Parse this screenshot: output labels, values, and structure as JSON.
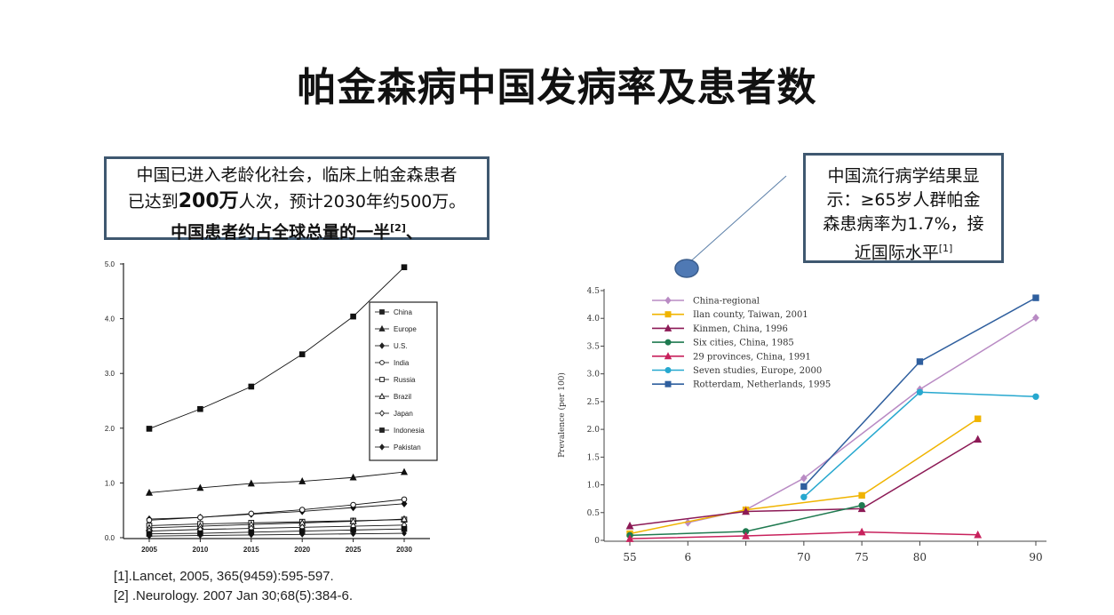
{
  "title": "帕金森病中国发病率及患者数",
  "callout_left": {
    "line1": "中国已进入老龄化社会，临床上帕金森患者",
    "line2_a": "已达到",
    "line2_b": "200万",
    "line2_c": "人次，预计2030年约500万。",
    "line3": "中国患者约占全球总量的一半",
    "line3_sup": "[2]",
    "line3_tail": "、"
  },
  "callout_right": {
    "line1": "中国流行病学结果显",
    "line2": "示：≥65岁人群帕金",
    "line3": "森患病率为1.7%，接",
    "line4": "近国际水平",
    "line4_sup": "[1]"
  },
  "references": [
    "[1].Lancet, 2005, 365(9459):595-597.",
    "[2] .Neurology. 2007 Jan 30;68(5):384-6."
  ],
  "chart_data": [
    {
      "type": "line",
      "x": [
        2005,
        2010,
        2015,
        2020,
        2025,
        2030
      ],
      "xlim": [
        2005,
        2030
      ],
      "ylim": [
        0,
        5.0
      ],
      "yticks": [
        "0.0",
        "1.0",
        "2.0",
        "3.0",
        "4.0",
        "5.0"
      ],
      "xticks": [
        "2005",
        "2010",
        "2015",
        "2020",
        "2025",
        "2030"
      ],
      "legend_position": "top-right",
      "color": "#111111",
      "series": [
        {
          "name": "China",
          "marker": "filled-square",
          "values": [
            1.99,
            2.35,
            2.76,
            3.35,
            4.04,
            4.94
          ]
        },
        {
          "name": "Europe",
          "marker": "filled-triangle",
          "values": [
            0.82,
            0.91,
            0.99,
            1.03,
            1.1,
            1.2
          ]
        },
        {
          "name": "U.S.",
          "marker": "filled-diamond",
          "values": [
            0.34,
            0.37,
            0.43,
            0.48,
            0.55,
            0.62
          ]
        },
        {
          "name": "India",
          "marker": "open-circle",
          "values": [
            0.32,
            0.37,
            0.44,
            0.51,
            0.6,
            0.7
          ]
        },
        {
          "name": "Russia",
          "marker": "open-square",
          "values": [
            0.22,
            0.25,
            0.27,
            0.29,
            0.31,
            0.33
          ]
        },
        {
          "name": "Brazil",
          "marker": "open-triangle",
          "values": [
            0.18,
            0.21,
            0.24,
            0.27,
            0.3,
            0.34
          ]
        },
        {
          "name": "Japan",
          "marker": "open-diamond",
          "values": [
            0.12,
            0.15,
            0.17,
            0.19,
            0.21,
            0.23
          ]
        },
        {
          "name": "Indonesia",
          "marker": "filled-square",
          "values": [
            0.07,
            0.08,
            0.1,
            0.12,
            0.14,
            0.16
          ]
        },
        {
          "name": "Pakistan",
          "marker": "small-diamond",
          "values": [
            0.03,
            0.04,
            0.05,
            0.06,
            0.07,
            0.08
          ]
        }
      ]
    },
    {
      "type": "line",
      "ylabel": "Prevalence (per 100)",
      "x_ticks": [
        "55",
        "6",
        "",
        "70",
        "75",
        "80",
        "",
        "90"
      ],
      "x_tick_values": [
        55,
        60,
        65,
        70,
        75,
        80,
        85,
        90
      ],
      "xlim": [
        55,
        90
      ],
      "ylim": [
        0,
        4.5
      ],
      "yticks": [
        "0",
        "0.5",
        "1.0",
        "1.5",
        "2.0",
        "2.5",
        "3.0",
        "3.5",
        "4.0",
        "4.5"
      ],
      "legend_position": "top-left",
      "series": [
        {
          "name": "China-regional",
          "color": "#b98bc4",
          "marker": "diamond",
          "x": [
            60,
            65,
            70,
            80,
            90
          ],
          "values": [
            0.32,
            0.55,
            1.12,
            2.72,
            4.01
          ]
        },
        {
          "name": "Ilan county, Taiwan, 2001",
          "color": "#f0b400",
          "marker": "square",
          "x": [
            55,
            65,
            75,
            85
          ],
          "values": [
            0.12,
            0.55,
            0.81,
            2.19
          ]
        },
        {
          "name": "Kinmen, China, 1996",
          "color": "#8c1a56",
          "marker": "triangle",
          "x": [
            55,
            65,
            75,
            85
          ],
          "values": [
            0.26,
            0.52,
            0.57,
            1.82
          ]
        },
        {
          "name": "Six cities, China, 1985",
          "color": "#1f7a50",
          "marker": "circle",
          "x": [
            55,
            65,
            75
          ],
          "values": [
            0.09,
            0.16,
            0.63
          ]
        },
        {
          "name": "29 provinces, China, 1991",
          "color": "#c8215c",
          "marker": "triangle",
          "x": [
            55,
            65,
            75,
            85
          ],
          "values": [
            0.03,
            0.08,
            0.15,
            0.1
          ]
        },
        {
          "name": "Seven studies, Europe, 2000",
          "color": "#27a8cf",
          "marker": "circle",
          "x": [
            70,
            80,
            90
          ],
          "values": [
            0.78,
            2.67,
            2.59
          ]
        },
        {
          "name": "Rotterdam, Netherlands, 1995",
          "color": "#2f5f9e",
          "marker": "square",
          "x": [
            70,
            80,
            90
          ],
          "values": [
            0.97,
            3.22,
            4.37
          ]
        }
      ]
    }
  ]
}
